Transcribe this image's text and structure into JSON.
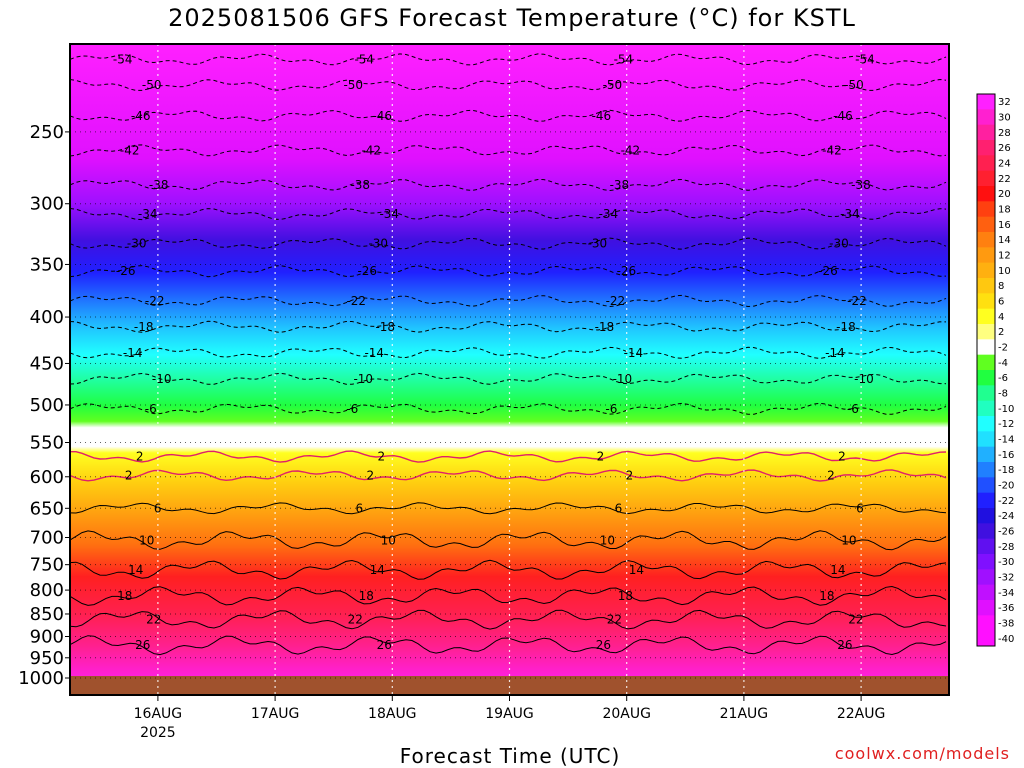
{
  "title": "2025081506 GFS Forecast Temperature (°C) for KSTL",
  "x_axis_label": "Forecast Time (UTC)",
  "watermark": "coolwx.com/models",
  "chart_data": {
    "type": "heatmap",
    "title": "2025081506 GFS Forecast Temperature (°C) for KSTL",
    "xlabel": "Forecast Time (UTC)",
    "ylabel": "",
    "y_scale": "log-pressure",
    "y_inverted": true,
    "y_ticks": [
      250,
      300,
      350,
      400,
      450,
      500,
      550,
      600,
      650,
      700,
      750,
      800,
      850,
      900,
      950,
      1000
    ],
    "ylim": [
      1000,
      200
    ],
    "x_ticks": [
      {
        "label": "16AUG",
        "sub": "2025",
        "time": "2025-08-16 00Z"
      },
      {
        "label": "17AUG",
        "sub": "",
        "time": "2025-08-17 00Z"
      },
      {
        "label": "18AUG",
        "sub": "",
        "time": "2025-08-18 00Z"
      },
      {
        "label": "19AUG",
        "sub": "",
        "time": "2025-08-19 00Z"
      },
      {
        "label": "20AUG",
        "sub": "",
        "time": "2025-08-20 00Z"
      },
      {
        "label": "21AUG",
        "sub": "",
        "time": "2025-08-21 00Z"
      },
      {
        "label": "22AUG",
        "sub": "",
        "time": "2025-08-22 00Z"
      }
    ],
    "xlim": [
      "2025-08-15 06Z",
      "2025-08-22 18Z"
    ],
    "colorbar_labels": [
      32,
      30,
      28,
      26,
      24,
      22,
      20,
      18,
      16,
      14,
      12,
      10,
      8,
      6,
      4,
      2,
      -2,
      -4,
      -6,
      -8,
      -10,
      -12,
      -14,
      -16,
      -18,
      -20,
      -22,
      -24,
      -26,
      -28,
      -30,
      -32,
      -34,
      -36,
      -38,
      -40
    ],
    "colorbar_colors": [
      "#ff20ff",
      "#ff20d0",
      "#ff20a0",
      "#ff2070",
      "#ff2050",
      "#ff2030",
      "#ff1010",
      "#ff4010",
      "#ff6010",
      "#ff8010",
      "#ff9a10",
      "#ffb010",
      "#ffc810",
      "#ffe010",
      "#ffff20",
      "#ffff80",
      "#ffffff",
      "#60ff20",
      "#20ff40",
      "#20ff90",
      "#20ffc0",
      "#20ffff",
      "#20e0ff",
      "#20b0ff",
      "#2080ff",
      "#2050ff",
      "#2020ff",
      "#2010e0",
      "#4010e0",
      "#6010f0",
      "#8010ff",
      "#a010ff",
      "#c010ff",
      "#e010ff",
      "#ff10ff",
      "#ff10ff"
    ],
    "contours": [
      {
        "value": -54,
        "pressure_hPa": 208
      },
      {
        "value": -50,
        "pressure_hPa": 222
      },
      {
        "value": -46,
        "pressure_hPa": 240
      },
      {
        "value": -42,
        "pressure_hPa": 262
      },
      {
        "value": -38,
        "pressure_hPa": 286
      },
      {
        "value": -34,
        "pressure_hPa": 308
      },
      {
        "value": -30,
        "pressure_hPa": 332
      },
      {
        "value": -26,
        "pressure_hPa": 356
      },
      {
        "value": -22,
        "pressure_hPa": 384
      },
      {
        "value": -18,
        "pressure_hPa": 410
      },
      {
        "value": -14,
        "pressure_hPa": 438
      },
      {
        "value": -10,
        "pressure_hPa": 468
      },
      {
        "value": -6,
        "pressure_hPa": 505
      },
      {
        "value": 2,
        "pressure_hPa": 570
      },
      {
        "value": 2,
        "pressure_hPa": 598
      },
      {
        "value": 6,
        "pressure_hPa": 650
      },
      {
        "value": 10,
        "pressure_hPa": 705
      },
      {
        "value": 14,
        "pressure_hPa": 760
      },
      {
        "value": 18,
        "pressure_hPa": 812
      },
      {
        "value": 22,
        "pressure_hPa": 862
      },
      {
        "value": 26,
        "pressure_hPa": 920
      }
    ],
    "legend": "right"
  }
}
